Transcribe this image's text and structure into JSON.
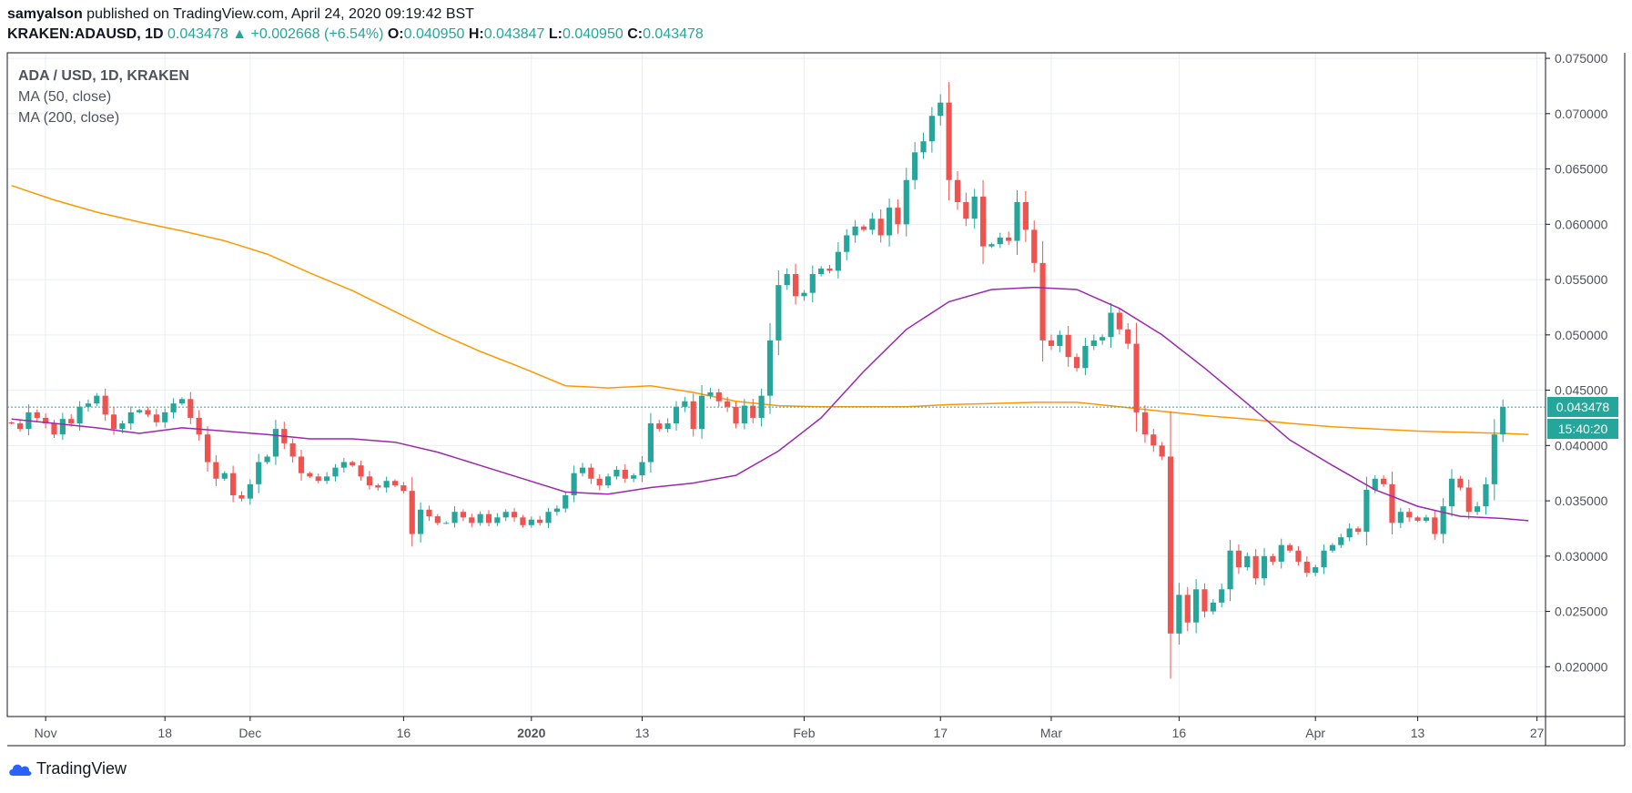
{
  "header": {
    "author": "samyalson",
    "published_text": "published on TradingView.com, April 24, 2020 09:19:42 BST",
    "symbol": "KRAKEN:ADAUSD, 1D",
    "last": "0.043478",
    "change": "+0.002668 (+6.54%)",
    "open_label": "O:",
    "open": "0.040950",
    "high_label": "H:",
    "high": "0.043847",
    "low_label": "L:",
    "low": "0.040950",
    "close_label": "C:",
    "close": "0.043478"
  },
  "legend": {
    "main": "ADA / USD, 1D, KRAKEN",
    "ma50": "MA (50, close)",
    "ma200": "MA (200, close)"
  },
  "price_tags": {
    "last": "0.043478",
    "countdown": "15:40:20"
  },
  "footer": {
    "brand": "TradingView"
  },
  "colors": {
    "up": "#26a69a",
    "down": "#ef5350",
    "ma50": "#9c27b0",
    "ma200": "#ff9800",
    "grid": "#e9eef3"
  },
  "chart_data": {
    "type": "candlestick",
    "title": "ADA / USD, 1D, KRAKEN",
    "ylim": [
      0.0155,
      0.0755
    ],
    "y_ticks": [
      "0.075000",
      "0.070000",
      "0.065000",
      "0.060000",
      "0.055000",
      "0.050000",
      "0.045000",
      "0.040000",
      "0.035000",
      "0.030000",
      "0.025000",
      "0.020000"
    ],
    "x_ticks": [
      {
        "label": "Nov",
        "day": 4,
        "bold": false
      },
      {
        "label": "18",
        "day": 18,
        "bold": false
      },
      {
        "label": "Dec",
        "day": 28,
        "bold": false
      },
      {
        "label": "16",
        "day": 46,
        "bold": false
      },
      {
        "label": "2020",
        "day": 61,
        "bold": true
      },
      {
        "label": "13",
        "day": 74,
        "bold": false
      },
      {
        "label": "Feb",
        "day": 93,
        "bold": false
      },
      {
        "label": "17",
        "day": 109,
        "bold": false
      },
      {
        "label": "Mar",
        "day": 122,
        "bold": false
      },
      {
        "label": "16",
        "day": 137,
        "bold": false
      },
      {
        "label": "Apr",
        "day": 153,
        "bold": false
      },
      {
        "label": "13",
        "day": 165,
        "bold": false
      },
      {
        "label": "27",
        "day": 179,
        "bold": false
      }
    ],
    "x_domain": [
      -0.5,
      180
    ],
    "last_price": 0.043478,
    "closes": [
      0.042,
      0.0415,
      0.043,
      0.0425,
      0.042,
      0.041,
      0.0424,
      0.042,
      0.0435,
      0.0438,
      0.0445,
      0.0428,
      0.0415,
      0.042,
      0.043,
      0.0432,
      0.0428,
      0.0421,
      0.043,
      0.0438,
      0.0442,
      0.0425,
      0.041,
      0.0385,
      0.037,
      0.0375,
      0.0355,
      0.0352,
      0.0365,
      0.0385,
      0.039,
      0.0415,
      0.0402,
      0.039,
      0.0375,
      0.0372,
      0.0368,
      0.0372,
      0.038,
      0.0385,
      0.0382,
      0.0372,
      0.0364,
      0.0362,
      0.0368,
      0.0364,
      0.0359,
      0.032,
      0.0342,
      0.0336,
      0.033,
      0.033,
      0.034,
      0.0335,
      0.033,
      0.0338,
      0.033,
      0.0335,
      0.034,
      0.0335,
      0.0328,
      0.0333,
      0.033,
      0.034,
      0.0343,
      0.0355,
      0.0375,
      0.038,
      0.037,
      0.0364,
      0.0372,
      0.0378,
      0.037,
      0.0373,
      0.0385,
      0.042,
      0.0415,
      0.042,
      0.0435,
      0.044,
      0.0415,
      0.0445,
      0.0448,
      0.044,
      0.0435,
      0.042,
      0.0436,
      0.0425,
      0.0445,
      0.0495,
      0.0545,
      0.0555,
      0.0535,
      0.0538,
      0.0555,
      0.056,
      0.0558,
      0.0575,
      0.059,
      0.0598,
      0.0595,
      0.0605,
      0.059,
      0.0615,
      0.06,
      0.064,
      0.0665,
      0.0675,
      0.0698,
      0.071,
      0.064,
      0.062,
      0.0605,
      0.0625,
      0.058,
      0.0582,
      0.0588,
      0.0585,
      0.062,
      0.0595,
      0.0565,
      0.0495,
      0.049,
      0.05,
      0.048,
      0.047,
      0.049,
      0.0495,
      0.0498,
      0.052,
      0.0505,
      0.0492,
      0.043,
      0.041,
      0.04,
      0.039,
      0.023,
      0.0265,
      0.024,
      0.027,
      0.025,
      0.0258,
      0.027,
      0.0305,
      0.029,
      0.03,
      0.028,
      0.03,
      0.0295,
      0.031,
      0.0305,
      0.0295,
      0.0285,
      0.029,
      0.0305,
      0.031,
      0.0317,
      0.0325,
      0.0322,
      0.036,
      0.037,
      0.0365,
      0.033,
      0.034,
      0.0335,
      0.0332,
      0.0335,
      0.032,
      0.0345,
      0.037,
      0.0362,
      0.034,
      0.0345,
      0.0365,
      0.041,
      0.043478
    ],
    "ma50": {
      "days": [
        0,
        5,
        10,
        15,
        20,
        25,
        30,
        35,
        40,
        45,
        50,
        55,
        60,
        65,
        70,
        75,
        80,
        85,
        90,
        95,
        100,
        105,
        110,
        115,
        120,
        125,
        130,
        135,
        140,
        145,
        150,
        155,
        160,
        165,
        170,
        175,
        178
      ],
      "values": [
        0.0424,
        0.042,
        0.0416,
        0.0411,
        0.0416,
        0.0413,
        0.041,
        0.0406,
        0.0406,
        0.0403,
        0.0394,
        0.0382,
        0.037,
        0.0358,
        0.0356,
        0.0362,
        0.0366,
        0.0373,
        0.0395,
        0.0425,
        0.0467,
        0.0505,
        0.053,
        0.0541,
        0.0543,
        0.0541,
        0.0524,
        0.05,
        0.047,
        0.0438,
        0.0405,
        0.0382,
        0.036,
        0.0345,
        0.0336,
        0.0334,
        0.0332
      ]
    },
    "ma200": {
      "days": [
        0,
        5,
        10,
        15,
        20,
        25,
        30,
        35,
        40,
        45,
        50,
        55,
        60,
        65,
        70,
        75,
        80,
        85,
        90,
        95,
        100,
        105,
        110,
        115,
        120,
        125,
        130,
        135,
        140,
        145,
        150,
        155,
        160,
        165,
        170,
        175,
        178
      ],
      "values": [
        0.0635,
        0.0622,
        0.0611,
        0.0602,
        0.0594,
        0.0585,
        0.0573,
        0.0556,
        0.054,
        0.0521,
        0.0502,
        0.0485,
        0.047,
        0.0454,
        0.0452,
        0.0454,
        0.0448,
        0.044,
        0.0436,
        0.0435,
        0.0435,
        0.0435,
        0.0437,
        0.0438,
        0.0439,
        0.0439,
        0.0435,
        0.0431,
        0.0427,
        0.0424,
        0.042,
        0.0417,
        0.0415,
        0.0413,
        0.0412,
        0.0411,
        0.041
      ]
    }
  }
}
